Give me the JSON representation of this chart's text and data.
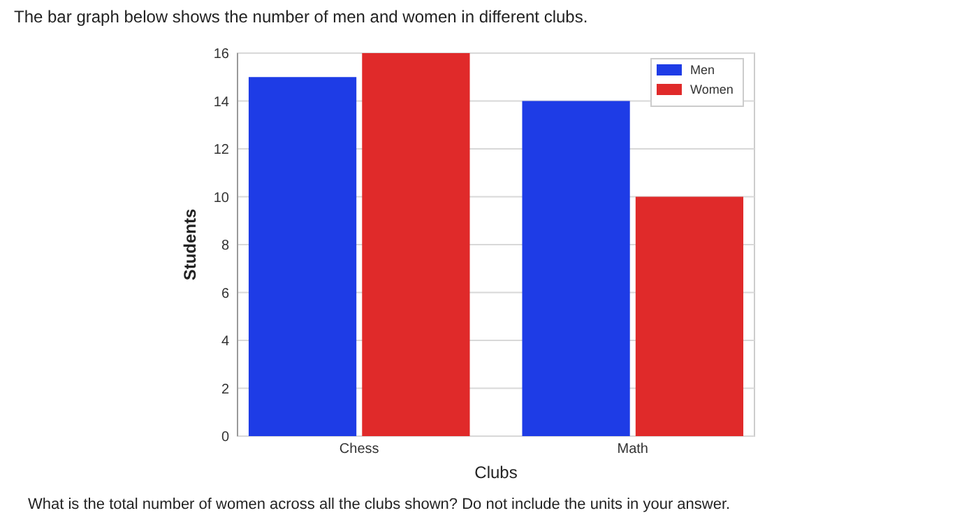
{
  "chart_data": {
    "type": "bar",
    "title": "The bar graph below shows the number of men and women in different clubs.",
    "xlabel": "Clubs",
    "ylabel": "Students",
    "categories": [
      "Chess",
      "Math"
    ],
    "series": [
      {
        "name": "Men",
        "color": "#1e3ce6",
        "values": [
          15,
          14
        ]
      },
      {
        "name": "Women",
        "color": "#e02a2a",
        "values": [
          16,
          10
        ]
      }
    ],
    "ylim": [
      0,
      16
    ],
    "yticks": [
      0,
      2,
      4,
      6,
      8,
      10,
      12,
      14,
      16
    ],
    "grid": "y",
    "legend": "top right",
    "annotations": [
      "What is the total number of women across all the clubs shown? Do not include the units in your answer."
    ]
  }
}
